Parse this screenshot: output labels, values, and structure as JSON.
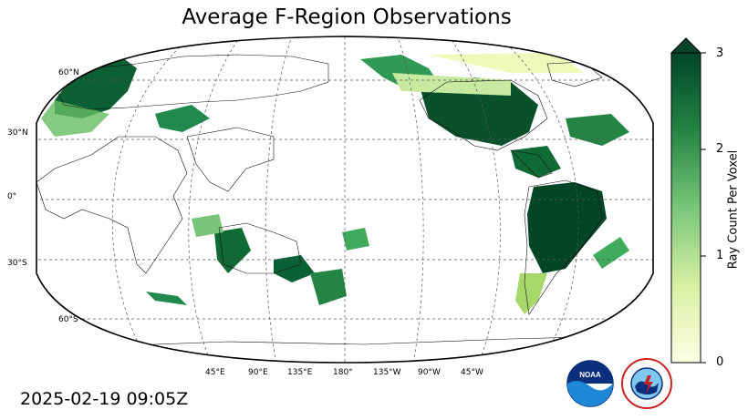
{
  "title": "Average F-Region Observations",
  "timestamp": "2025-02-19 09:05Z",
  "lat_labels": [
    "60°N",
    "30°N",
    "0°",
    "30°S",
    "60°S"
  ],
  "lon_labels": [
    "45°E",
    "90°E",
    "135°E",
    "180°",
    "135°W",
    "90°W",
    "45°W"
  ],
  "colorbar": {
    "label": "Ray Count Per Voxel",
    "ticks": [
      "0",
      "1",
      "2",
      "3"
    ],
    "min": 0,
    "max": 3,
    "extend": "max",
    "color_low": "#ffffe5",
    "color_mid": "#78c679",
    "color_high": "#004529"
  },
  "map": {
    "projection": "Robinson",
    "central_longitude": 180,
    "grid": true
  },
  "logos": [
    "NOAA",
    "National Weather Service"
  ]
}
